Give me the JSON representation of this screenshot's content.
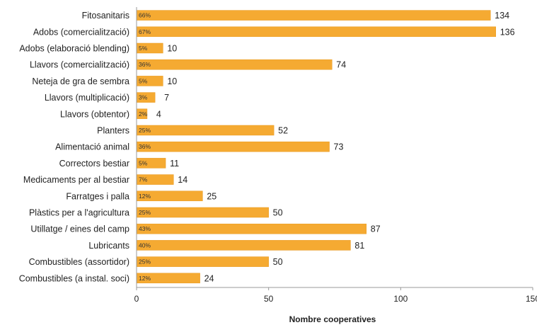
{
  "chart_data": {
    "type": "bar",
    "orientation": "horizontal",
    "categories": [
      "Fitosanitaris",
      "Adobs (comercialització)",
      "Adobs (elaboració blending)",
      "Llavors (comercialització)",
      "Neteja de gra de sembra",
      "Llavors (multiplicació)",
      "Llavors (obtentor)",
      "Planters",
      "Alimentació animal",
      "Correctors bestiar",
      "Medicaments per al bestiar",
      "Farratges i palla",
      "Plàstics per a l'agricultura",
      "Utillatge / eines del camp",
      "Lubricants",
      "Combustibles (assortidor)",
      "Combustibles (a instal. soci)"
    ],
    "values": [
      134,
      136,
      10,
      74,
      10,
      7,
      4,
      52,
      73,
      11,
      14,
      25,
      50,
      87,
      81,
      50,
      24
    ],
    "percent_labels": [
      "66%",
      "67%",
      "5%",
      "36%",
      "5%",
      "3%",
      "2%",
      "25%",
      "36%",
      "5%",
      "7%",
      "12%",
      "25%",
      "43%",
      "40%",
      "25%",
      "12%"
    ],
    "xlabel": "Nombre cooperatives",
    "ylabel": "",
    "title": "",
    "xlim": [
      0,
      150
    ],
    "xticks": [
      "0",
      "50",
      "100",
      "150"
    ],
    "grid": false,
    "legend": "none",
    "bar_color": "#f5aa32",
    "bar_edge_color": "#e8981c"
  }
}
